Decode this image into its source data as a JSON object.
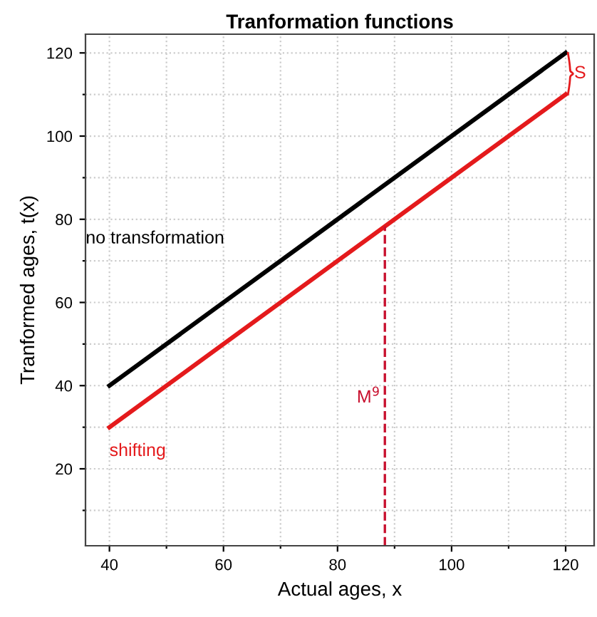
{
  "chart_data": {
    "type": "line",
    "title": "Tranformation functions",
    "xlabel": "Actual ages, x",
    "ylabel": "Tranformed ages, t(x)",
    "x": [
      40,
      120
    ],
    "series": [
      {
        "name": "no transformation",
        "color": "#000000",
        "values": [
          40,
          120
        ]
      },
      {
        "name": "shifting",
        "color": "#e41a1c",
        "values": [
          30,
          110
        ]
      }
    ],
    "xlim": [
      35.8,
      125
    ],
    "ylim": [
      1.5,
      124.5
    ],
    "xticks": [
      40,
      {
        "value": 50,
        "label": null
      },
      60,
      {
        "value": 70,
        "label": null
      },
      80,
      {
        "value": 90,
        "label": null
      },
      100,
      {
        "value": 110,
        "label": null
      },
      120
    ],
    "yticks": [
      {
        "value": 10,
        "label": null
      },
      20,
      {
        "value": 30,
        "label": null
      },
      40,
      {
        "value": 50,
        "label": null
      },
      60,
      {
        "value": 70,
        "label": null
      },
      80,
      {
        "value": 90,
        "label": null
      },
      100,
      {
        "value": 110,
        "label": null
      },
      120
    ],
    "grid": true,
    "marker": "none",
    "line_style": "solid",
    "ref_lines": [
      {
        "axis": "x",
        "value": 88.3,
        "label": "M$^{9}$",
        "color": "#c8102e",
        "line_style": "dashed"
      }
    ],
    "annotations": [
      "S"
    ]
  }
}
